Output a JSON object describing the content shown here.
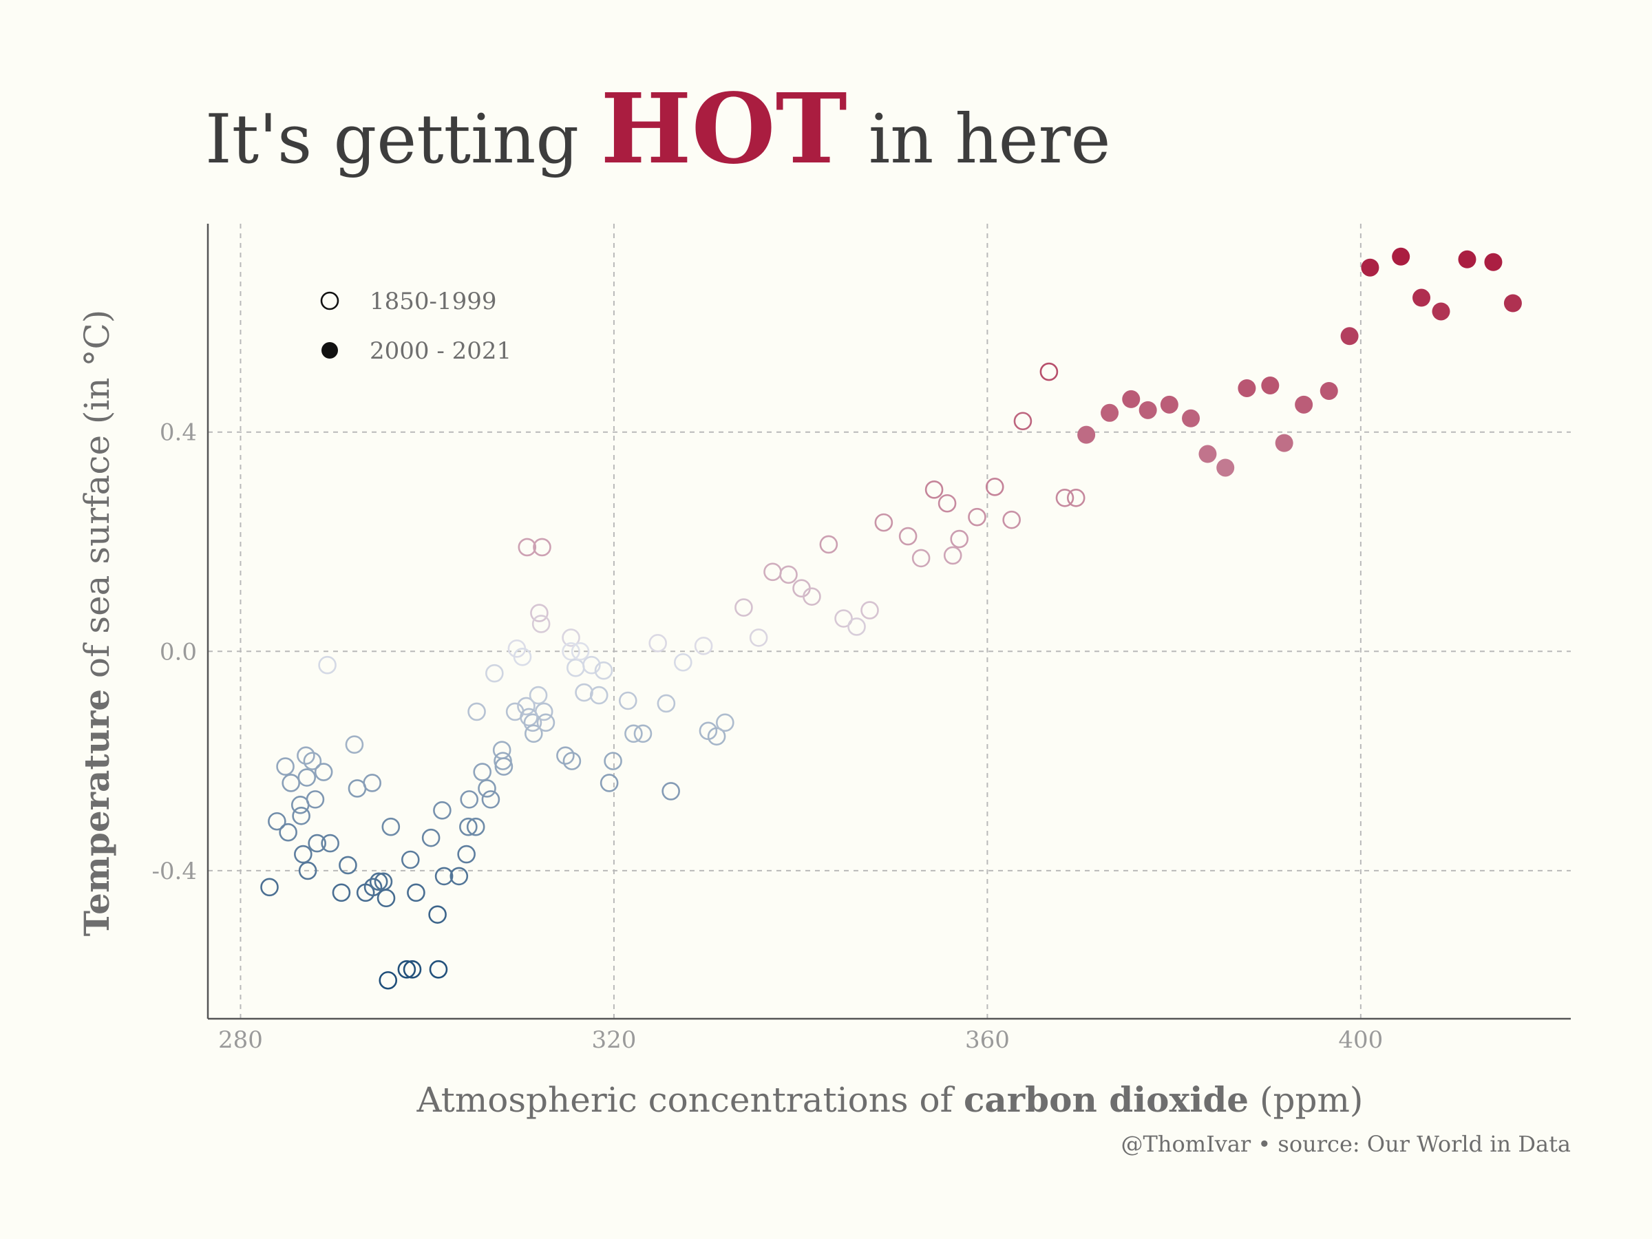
{
  "title": {
    "pre": "It's getting ",
    "hot": "HOT",
    "post": " in here"
  },
  "credit": "@ThomIvar • source: Our World in Data",
  "colors": {
    "hot": "#aa1d40",
    "cold": "#1f4e79",
    "mid": "#dde0ea",
    "text": "#3d3d3d"
  },
  "chart_data": {
    "type": "scatter",
    "xlabel_parts": [
      {
        "text": "Atmospheric concentrations of ",
        "bold": false
      },
      {
        "text": "carbon dioxide",
        "bold": true
      },
      {
        "text": " (ppm)",
        "bold": false
      }
    ],
    "ylabel_parts": [
      {
        "text": "Temperature",
        "bold": true
      },
      {
        "text": " of sea surface (in °C)",
        "bold": false
      }
    ],
    "xlim": [
      276.5,
      422.5
    ],
    "ylim": [
      -0.67,
      0.78
    ],
    "xticks": [
      280,
      320,
      360,
      400
    ],
    "xtick_labels": [
      "280",
      "320",
      "360",
      "400"
    ],
    "yticks": [
      -0.4,
      0.0,
      0.4
    ],
    "ytick_labels": [
      "-0.4",
      "0.0",
      "0.4"
    ],
    "grid": true,
    "legend": {
      "placement": "top-left",
      "entries": [
        "1850-1999",
        "2000 - 2021"
      ]
    },
    "color_encoding": "temperature (blue = cold, crimson = hot)",
    "series": [
      {
        "name": "1850-1999",
        "marker": "open-circle",
        "points": [
          [
            283.1,
            -0.43
          ],
          [
            283.9,
            -0.31
          ],
          [
            284.8,
            -0.21
          ],
          [
            285.1,
            -0.33
          ],
          [
            285.4,
            -0.24
          ],
          [
            286.4,
            -0.28
          ],
          [
            286.5,
            -0.3
          ],
          [
            286.7,
            -0.37
          ],
          [
            287.0,
            -0.19
          ],
          [
            287.1,
            -0.23
          ],
          [
            287.2,
            -0.4
          ],
          [
            287.7,
            -0.2
          ],
          [
            288.0,
            -0.27
          ],
          [
            288.2,
            -0.35
          ],
          [
            288.9,
            -0.22
          ],
          [
            289.3,
            -0.025
          ],
          [
            289.6,
            -0.35
          ],
          [
            290.8,
            -0.44
          ],
          [
            291.5,
            -0.39
          ],
          [
            292.2,
            -0.17
          ],
          [
            292.5,
            -0.25
          ],
          [
            293.4,
            -0.44
          ],
          [
            294.1,
            -0.24
          ],
          [
            294.2,
            -0.43
          ],
          [
            294.8,
            -0.42
          ],
          [
            295.3,
            -0.42
          ],
          [
            295.6,
            -0.45
          ],
          [
            295.8,
            -0.6
          ],
          [
            296.1,
            -0.32
          ],
          [
            297.8,
            -0.58
          ],
          [
            298.4,
            -0.58
          ],
          [
            298.2,
            -0.38
          ],
          [
            298.8,
            -0.44
          ],
          [
            300.4,
            -0.34
          ],
          [
            301.1,
            -0.48
          ],
          [
            301.2,
            -0.58
          ],
          [
            301.6,
            -0.29
          ],
          [
            301.8,
            -0.41
          ],
          [
            303.4,
            -0.41
          ],
          [
            304.2,
            -0.37
          ],
          [
            304.4,
            -0.32
          ],
          [
            304.5,
            -0.27
          ],
          [
            305.2,
            -0.32
          ],
          [
            305.3,
            -0.11
          ],
          [
            305.9,
            -0.22
          ],
          [
            306.4,
            -0.25
          ],
          [
            306.8,
            -0.27
          ],
          [
            307.2,
            -0.04
          ],
          [
            308.0,
            -0.18
          ],
          [
            308.1,
            -0.2
          ],
          [
            308.2,
            -0.21
          ],
          [
            309.4,
            -0.11
          ],
          [
            309.6,
            0.005
          ],
          [
            310.2,
            -0.01
          ],
          [
            310.6,
            -0.1
          ],
          [
            310.9,
            -0.12
          ],
          [
            311.3,
            -0.13
          ],
          [
            311.4,
            -0.15
          ],
          [
            311.9,
            -0.08
          ],
          [
            312.0,
            0.07
          ],
          [
            312.2,
            0.05
          ],
          [
            312.5,
            -0.11
          ],
          [
            312.7,
            -0.13
          ],
          [
            310.7,
            0.19
          ],
          [
            312.3,
            0.19
          ],
          [
            314.8,
            -0.19
          ],
          [
            315.4,
            0.025
          ],
          [
            315.4,
            0.0
          ],
          [
            315.5,
            -0.2
          ],
          [
            315.9,
            -0.03
          ],
          [
            316.4,
            0.0
          ],
          [
            316.8,
            -0.075
          ],
          [
            317.6,
            -0.025
          ],
          [
            318.4,
            -0.08
          ],
          [
            318.9,
            -0.035
          ],
          [
            319.5,
            -0.24
          ],
          [
            319.9,
            -0.2
          ],
          [
            321.5,
            -0.09
          ],
          [
            322.1,
            -0.15
          ],
          [
            323.1,
            -0.15
          ],
          [
            324.7,
            0.015
          ],
          [
            325.6,
            -0.095
          ],
          [
            326.1,
            -0.255
          ],
          [
            327.4,
            -0.02
          ],
          [
            329.6,
            0.01
          ],
          [
            330.1,
            -0.145
          ],
          [
            331.0,
            -0.155
          ],
          [
            331.9,
            -0.13
          ],
          [
            333.9,
            0.08
          ],
          [
            335.5,
            0.025
          ],
          [
            337.0,
            0.145
          ],
          [
            338.7,
            0.14
          ],
          [
            340.1,
            0.115
          ],
          [
            341.2,
            0.1
          ],
          [
            343.0,
            0.195
          ],
          [
            344.6,
            0.06
          ],
          [
            346.0,
            0.045
          ],
          [
            347.4,
            0.075
          ],
          [
            348.9,
            0.235
          ],
          [
            351.5,
            0.21
          ],
          [
            352.9,
            0.17
          ],
          [
            354.3,
            0.295
          ],
          [
            355.7,
            0.27
          ],
          [
            356.3,
            0.175
          ],
          [
            357.0,
            0.205
          ],
          [
            358.9,
            0.245
          ],
          [
            360.8,
            0.3
          ],
          [
            362.6,
            0.24
          ],
          [
            363.8,
            0.42
          ],
          [
            366.6,
            0.51
          ],
          [
            368.3,
            0.28
          ],
          [
            369.5,
            0.28
          ]
        ]
      },
      {
        "name": "2000 - 2021",
        "marker": "filled-circle",
        "points": [
          [
            370.6,
            0.395
          ],
          [
            373.1,
            0.435
          ],
          [
            375.4,
            0.46
          ],
          [
            377.2,
            0.44
          ],
          [
            379.5,
            0.45
          ],
          [
            381.8,
            0.425
          ],
          [
            383.6,
            0.36
          ],
          [
            385.5,
            0.335
          ],
          [
            387.8,
            0.48
          ],
          [
            390.3,
            0.485
          ],
          [
            391.8,
            0.38
          ],
          [
            393.9,
            0.45
          ],
          [
            396.6,
            0.475
          ],
          [
            398.8,
            0.575
          ],
          [
            401.0,
            0.7
          ],
          [
            404.3,
            0.72
          ],
          [
            406.5,
            0.645
          ],
          [
            408.6,
            0.62
          ],
          [
            411.4,
            0.715
          ],
          [
            414.2,
            0.71
          ],
          [
            416.3,
            0.635
          ]
        ]
      }
    ]
  }
}
